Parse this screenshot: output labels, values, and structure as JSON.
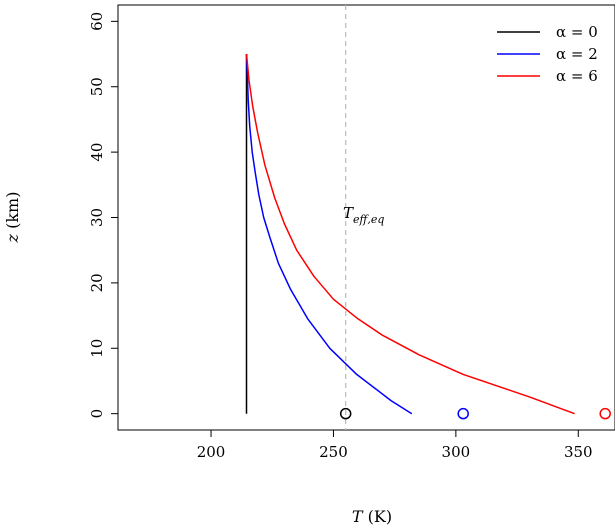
{
  "chart_data": {
    "type": "line",
    "xlabel": "T (K)",
    "ylabel": "z (km)",
    "xlim": [
      162,
      365
    ],
    "ylim": [
      -2.5,
      62.5
    ],
    "xticks": [
      200,
      250,
      300,
      350
    ],
    "yticks": [
      0,
      10,
      20,
      30,
      40,
      50,
      60
    ],
    "grid": false,
    "legend_position": "top-right",
    "vline": {
      "x": 255,
      "style": "dashed",
      "color": "#bbbbbb",
      "label": "T_{eff,eq}"
    },
    "series": [
      {
        "name": "α = 0",
        "color": "#000000",
        "points": [
          [
            214.5,
            0
          ],
          [
            214.5,
            55
          ]
        ],
        "surface_marker": {
          "x": 255,
          "y": 0
        }
      },
      {
        "name": "α = 2",
        "color": "#0000ff",
        "points": [
          [
            282,
            0
          ],
          [
            273.5,
            2
          ],
          [
            259.5,
            6
          ],
          [
            248.5,
            10
          ],
          [
            239.5,
            14.5
          ],
          [
            232.5,
            19
          ],
          [
            227.5,
            23
          ],
          [
            224,
            27
          ],
          [
            221.5,
            30
          ],
          [
            219.5,
            33.5
          ],
          [
            218,
            37
          ],
          [
            216.8,
            40
          ],
          [
            215.8,
            44
          ],
          [
            215.2,
            48
          ],
          [
            214.8,
            52
          ],
          [
            214.5,
            55
          ]
        ],
        "surface_marker": {
          "x": 303,
          "y": 0
        }
      },
      {
        "name": "α = 6",
        "color": "#ff0000",
        "points": [
          [
            348.5,
            0
          ],
          [
            330.5,
            2.5
          ],
          [
            303,
            6
          ],
          [
            285,
            9
          ],
          [
            270,
            12
          ],
          [
            260,
            14.5
          ],
          [
            250,
            17.5
          ],
          [
            242,
            21
          ],
          [
            235,
            25
          ],
          [
            230,
            29
          ],
          [
            226,
            33
          ],
          [
            222,
            38
          ],
          [
            219,
            43
          ],
          [
            217,
            47
          ],
          [
            215.5,
            51
          ],
          [
            214.5,
            55
          ]
        ],
        "surface_marker": {
          "x": 361,
          "y": 0
        }
      }
    ]
  },
  "legend": {
    "items": [
      {
        "label": "α = 0",
        "color": "#000000"
      },
      {
        "label": "α = 2",
        "color": "#0000ff"
      },
      {
        "label": "α = 6",
        "color": "#ff0000"
      }
    ]
  },
  "annotation": {
    "text": "T",
    "sub": "eff,eq"
  },
  "axes": {
    "xtitle": "T",
    "xunit": " (K)",
    "ytitle": "z",
    "yunit": " (km)"
  }
}
